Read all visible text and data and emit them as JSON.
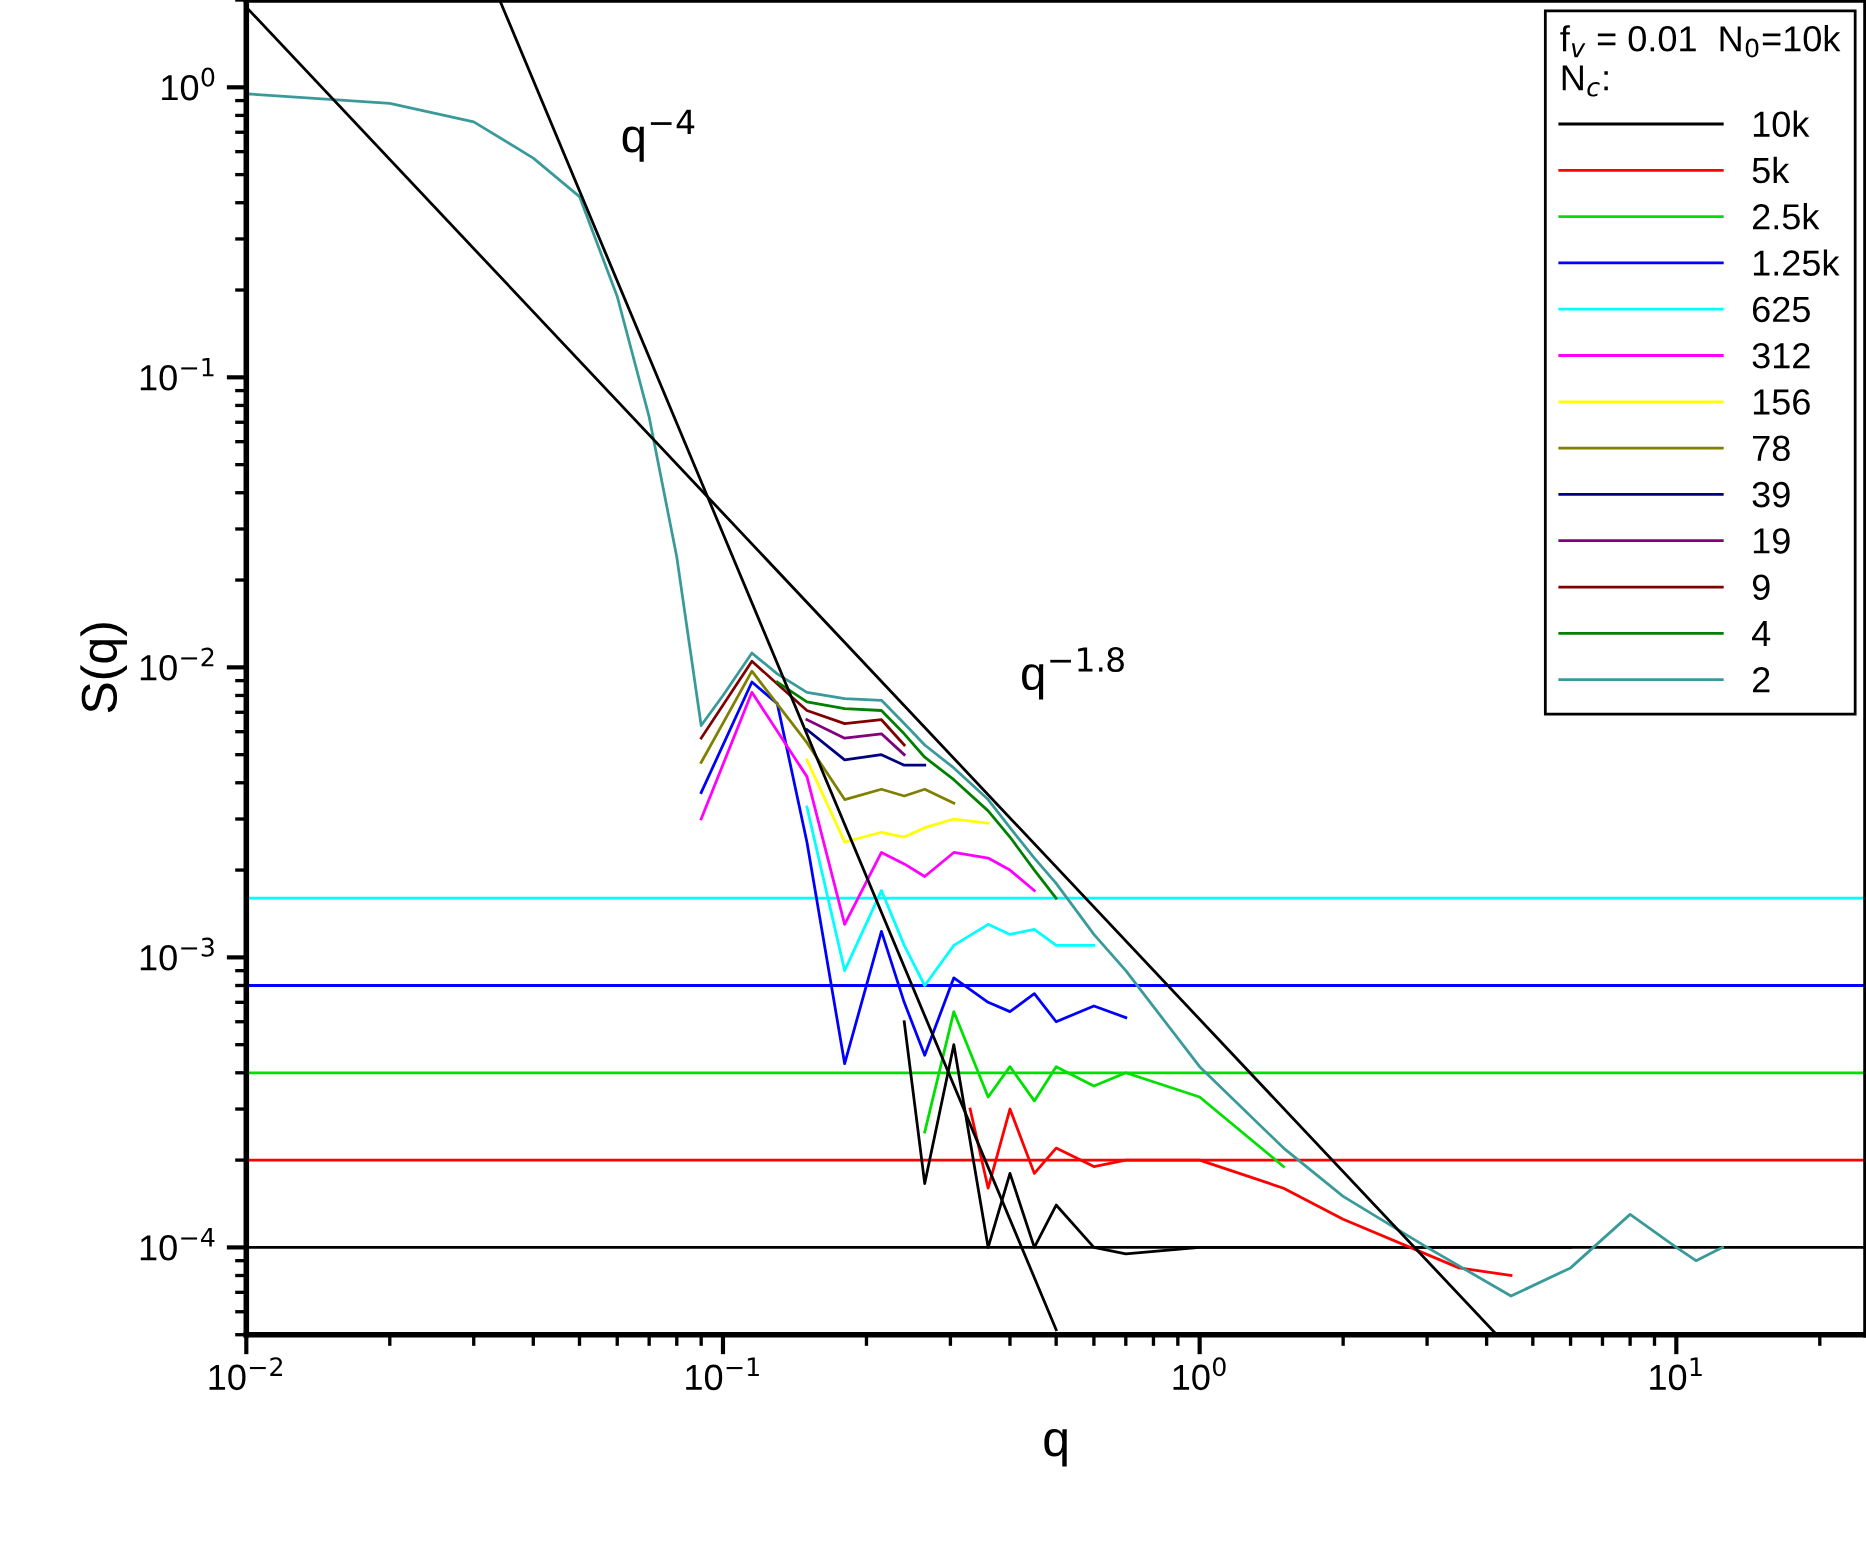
{
  "chart_data": {
    "type": "line",
    "xlabel": "q",
    "ylabel": "S(q)",
    "legend_title": "f$_{v}$ = 0.01  N$_{0}$=10k\nN$_{c}$:",
    "log": "xy",
    "grid": false,
    "legend": "top right",
    "marker": "none",
    "line_style": "solid",
    "xlim": [
      0.01,
      25
    ],
    "ylim": [
      5e-05,
      2
    ],
    "xticks": [
      {
        "value": 0.01,
        "label": "10$^{−2}$"
      },
      {
        "value": 0.1,
        "label": "10$^{−1}$"
      },
      {
        "value": 1,
        "label": "10$^{0}$"
      },
      {
        "value": 10,
        "label": "10$^{1}$"
      }
    ],
    "yticks": [
      {
        "value": 0.0001,
        "label": "10$^{−4}$"
      },
      {
        "value": 0.001,
        "label": "10$^{−3}$"
      },
      {
        "value": 0.01,
        "label": "10$^{−2}$"
      },
      {
        "value": 0.1,
        "label": "10$^{−1}$"
      },
      {
        "value": 1,
        "label": "10$^{0}$"
      }
    ],
    "series": [
      {
        "name": "10k",
        "color": "#000000",
        "x": [
          0.24,
          0.265,
          0.305,
          0.36,
          0.4,
          0.45,
          0.5,
          0.6,
          0.7,
          1.0,
          1.5,
          2.0,
          2.5,
          4.5,
          6.0
        ],
        "values": [
          0.0006,
          0.000166,
          0.0005,
          0.0001,
          0.00018,
          0.0001,
          0.00014,
          0.0001,
          9.5e-05,
          0.0001,
          0.0001,
          0.0001,
          0.0001,
          0.0001,
          0.0001
        ]
      },
      {
        "name": "5k",
        "color": "#ff0000",
        "x": [
          0.33,
          0.36,
          0.4,
          0.45,
          0.5,
          0.6,
          0.7,
          1.0,
          1.5,
          2.0,
          3.5,
          4.5
        ],
        "values": [
          0.0003,
          0.00016,
          0.0003,
          0.00018,
          0.00022,
          0.00019,
          0.0002,
          0.0002,
          0.00016,
          0.000125,
          8.5e-05,
          8e-05
        ]
      },
      {
        "name": "2.5k",
        "color": "#00e000",
        "x": [
          0.265,
          0.305,
          0.36,
          0.4,
          0.45,
          0.5,
          0.6,
          0.7,
          1.0,
          1.5
        ],
        "values": [
          0.00025,
          0.00065,
          0.00033,
          0.00042,
          0.00032,
          0.00042,
          0.00036,
          0.0004,
          0.00033,
          0.00019
        ]
      },
      {
        "name": "1.25k",
        "color": "#0000ff",
        "x": [
          0.09,
          0.115,
          0.13,
          0.15,
          0.18,
          0.215,
          0.24,
          0.265,
          0.305,
          0.36,
          0.4,
          0.45,
          0.5,
          0.6,
          0.7
        ],
        "values": [
          0.0037,
          0.0089,
          0.0075,
          0.0025,
          0.00043,
          0.00123,
          0.0007,
          0.00046,
          0.00085,
          0.0007,
          0.00065,
          0.00075,
          0.0006,
          0.00068,
          0.00062
        ]
      },
      {
        "name": "625",
        "color": "#00ffff",
        "x": [
          0.15,
          0.18,
          0.215,
          0.24,
          0.265,
          0.305,
          0.36,
          0.4,
          0.45,
          0.5,
          0.6
        ],
        "values": [
          0.0033,
          0.0009,
          0.0017,
          0.0011,
          0.0008,
          0.0011,
          0.0013,
          0.0012,
          0.00125,
          0.0011,
          0.0011
        ]
      },
      {
        "name": "312",
        "color": "#ff00ff",
        "x": [
          0.09,
          0.115,
          0.15,
          0.18,
          0.215,
          0.24,
          0.265,
          0.305,
          0.36,
          0.4,
          0.45
        ],
        "values": [
          0.003,
          0.0082,
          0.0042,
          0.0013,
          0.0023,
          0.0021,
          0.0019,
          0.0023,
          0.0022,
          0.002,
          0.0017
        ]
      },
      {
        "name": "156",
        "color": "#ffff00",
        "x": [
          0.15,
          0.18,
          0.215,
          0.24,
          0.265,
          0.305,
          0.36
        ],
        "values": [
          0.0048,
          0.0025,
          0.0027,
          0.0026,
          0.0028,
          0.003,
          0.0029
        ]
      },
      {
        "name": "78",
        "color": "#808000",
        "x": [
          0.09,
          0.115,
          0.15,
          0.18,
          0.215,
          0.24,
          0.265,
          0.305
        ],
        "values": [
          0.0047,
          0.0097,
          0.0055,
          0.0035,
          0.0038,
          0.0036,
          0.0038,
          0.0034
        ]
      },
      {
        "name": "39",
        "color": "#000080",
        "x": [
          0.15,
          0.18,
          0.215,
          0.24,
          0.265
        ],
        "values": [
          0.0061,
          0.0048,
          0.005,
          0.0046,
          0.0046
        ]
      },
      {
        "name": "19",
        "color": "#800080",
        "x": [
          0.15,
          0.18,
          0.215,
          0.24
        ],
        "values": [
          0.0066,
          0.0057,
          0.0059,
          0.005
        ]
      },
      {
        "name": "9",
        "color": "#800000",
        "x": [
          0.09,
          0.115,
          0.15,
          0.18,
          0.215,
          0.24
        ],
        "values": [
          0.0057,
          0.0105,
          0.0071,
          0.0064,
          0.0066,
          0.0054
        ]
      },
      {
        "name": "4",
        "color": "#008000",
        "x": [
          0.13,
          0.15,
          0.18,
          0.215,
          0.24,
          0.265,
          0.305,
          0.36,
          0.4,
          0.45,
          0.5
        ],
        "values": [
          0.0089,
          0.0076,
          0.0072,
          0.0071,
          0.0059,
          0.0049,
          0.0041,
          0.0032,
          0.0026,
          0.002,
          0.0016
        ]
      },
      {
        "name": "2",
        "color": "#3a9a9a",
        "x": [
          0.01,
          0.02,
          0.03,
          0.04,
          0.05,
          0.06,
          0.07,
          0.08,
          0.09,
          0.1,
          0.115,
          0.13,
          0.15,
          0.18,
          0.215,
          0.24,
          0.265,
          0.305,
          0.36,
          0.4,
          0.45,
          0.5,
          0.6,
          0.7,
          1.0,
          1.5,
          2.0,
          3.0,
          4.5,
          6.0,
          8.0,
          10,
          11,
          12.5
        ],
        "values": [
          0.95,
          0.88,
          0.76,
          0.57,
          0.42,
          0.19,
          0.073,
          0.024,
          0.0063,
          0.008,
          0.0112,
          0.0095,
          0.0082,
          0.0078,
          0.0077,
          0.0064,
          0.0054,
          0.0045,
          0.0035,
          0.0028,
          0.0022,
          0.0018,
          0.0012,
          0.0009,
          0.00042,
          0.00022,
          0.00015,
          0.0001,
          6.8e-05,
          8.5e-05,
          0.00013,
          0.0001,
          9e-05,
          0.0001
        ]
      },
      {
        "type": "line",
        "color": "#000000",
        "x": [
          0.034,
          0.5
        ],
        "values": [
          2,
          5.2e-05
        ]
      },
      {
        "type": "line",
        "color": "#000000",
        "x": [
          0.01,
          4.2
        ],
        "values": [
          1.89,
          5e-05
        ]
      }
    ],
    "ref_lines": [
      {
        "axis": "y",
        "value": 0.0001,
        "color": "#000000"
      },
      {
        "axis": "y",
        "value": 0.0002,
        "color": "#ff0000"
      },
      {
        "axis": "y",
        "value": 0.0004,
        "color": "#00e000"
      },
      {
        "axis": "y",
        "value": 0.0008,
        "color": "#0000ff"
      },
      {
        "axis": "y",
        "value": 0.0016,
        "color": "#00ffff"
      }
    ],
    "annotations": [
      {
        "text": "q$^{−4}$",
        "x": 0.061,
        "y": 0.2
      },
      {
        "text": "q$^{−1.8}$",
        "x": 0.42,
        "y": 0.0028
      }
    ]
  }
}
